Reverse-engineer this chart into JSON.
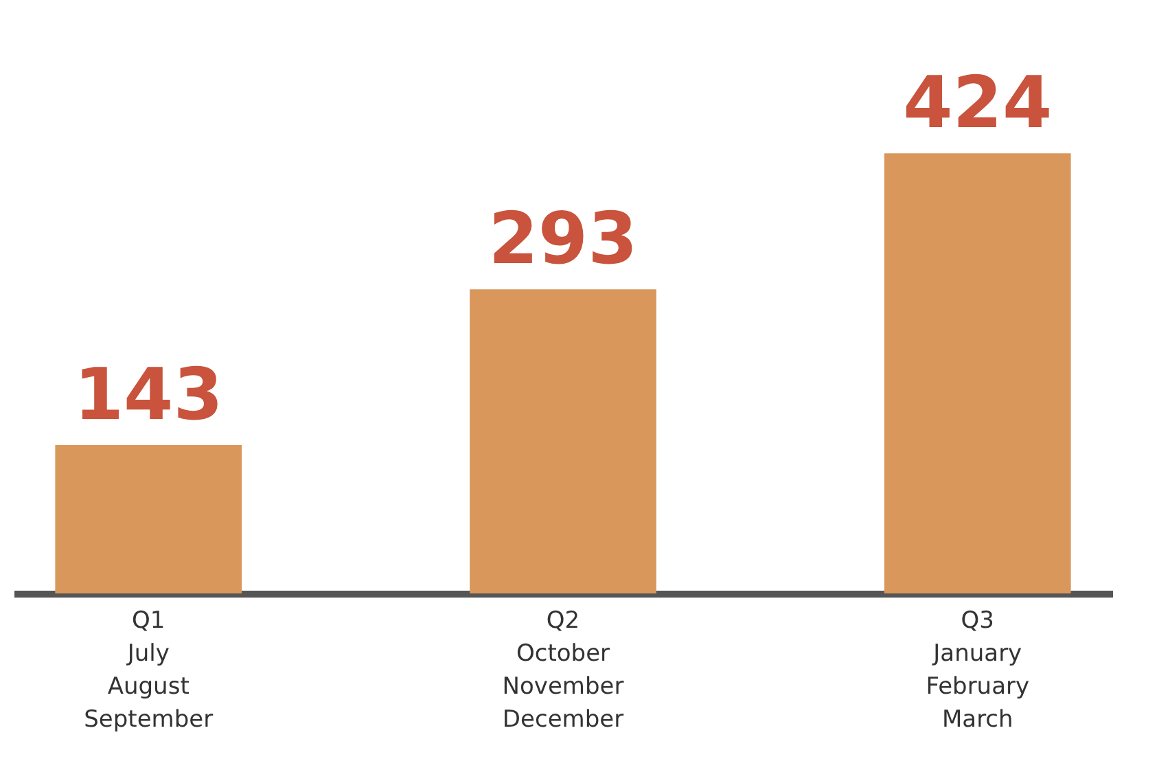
{
  "chart_data": {
    "type": "bar",
    "categories": [
      "Q1\nJuly\nAugust\nSeptember",
      "Q2\nOctober\nNovember\nDecember",
      "Q3\nJanuary\nFebruary\nMarch"
    ],
    "values": [
      143,
      293,
      424
    ],
    "color": "#d9975c",
    "data_labels": true
  }
}
